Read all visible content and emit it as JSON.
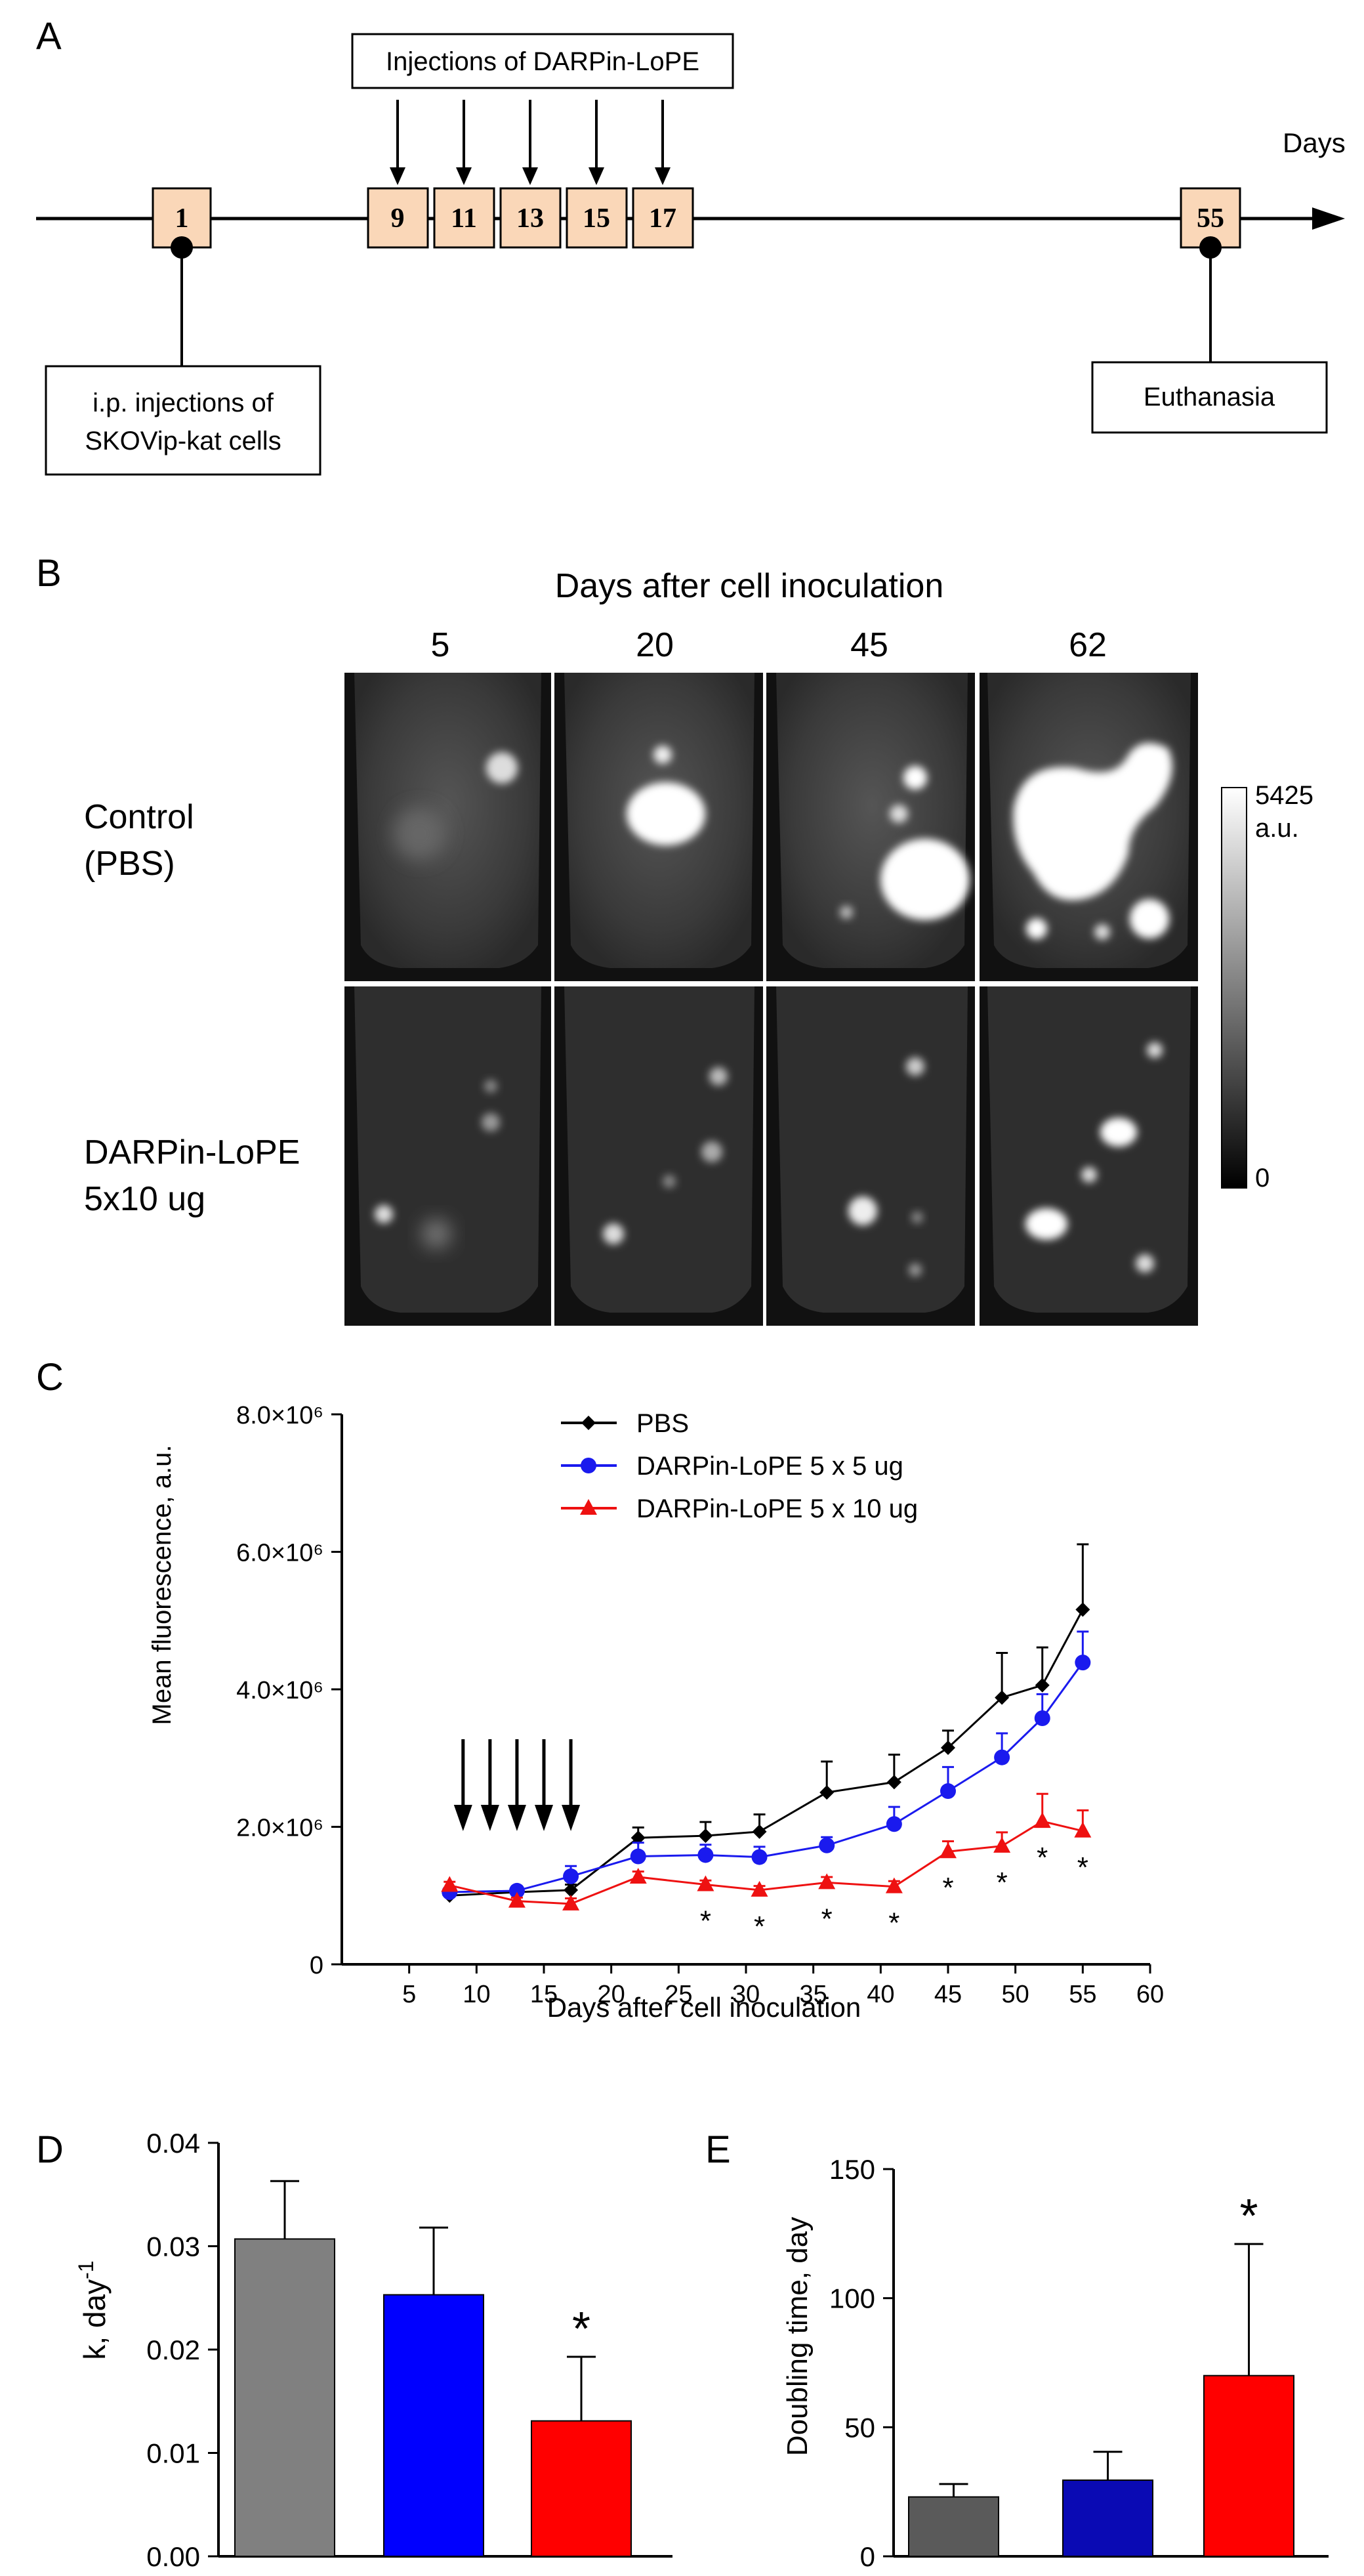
{
  "panel_letters": {
    "a": "A",
    "b": "B",
    "c": "C",
    "d": "D",
    "e": "E"
  },
  "timeline": {
    "axis_label": "Days",
    "day_boxes": [
      "1",
      "9",
      "11",
      "13",
      "15",
      "17",
      "55"
    ],
    "injection_label": "Injections of DARPin-LoPE",
    "start_label_line1": "i.p. injections of",
    "start_label_line2": "SKOVip-kat cells",
    "end_label": "Euthanasia",
    "colors": {
      "day_box_fill": "#fad7b8"
    }
  },
  "imaging": {
    "header": "Days after cell inoculation",
    "days": [
      "5",
      "20",
      "45",
      "62"
    ],
    "rows": [
      {
        "label_line1": "Control",
        "label_line2": "(PBS)"
      },
      {
        "label_line1": "DARPin-LoPE",
        "label_line2": "5x10 ug"
      }
    ],
    "colorbar": {
      "max_label": "5425",
      "unit": "a.u.",
      "min_label": "0"
    }
  },
  "chart_data": [
    {
      "type": "line",
      "panel": "C",
      "xlabel": "Days after cell inoculation",
      "ylabel": "Mean fluorescence, a.u.",
      "xlim": [
        0,
        60
      ],
      "ylim": [
        0,
        8000000
      ],
      "x_ticks": [
        "5",
        "10",
        "15",
        "20",
        "25",
        "30",
        "35",
        "40",
        "45",
        "50",
        "55",
        "60"
      ],
      "y_ticks": [
        {
          "value": 0,
          "label": "0"
        },
        {
          "value": 2000000,
          "label": "2.0×10⁶"
        },
        {
          "value": 4000000,
          "label": "4.0×10⁶"
        },
        {
          "value": 6000000,
          "label": "6.0×10⁶"
        },
        {
          "value": 8000000,
          "label": "8.0×10⁶"
        }
      ],
      "injection_days": [
        9,
        11,
        13,
        15,
        17
      ],
      "legend_position": "top-center",
      "series": [
        {
          "name": "PBS",
          "color": "#000000",
          "marker": "diamond",
          "x": [
            8,
            13,
            17,
            22,
            27,
            31,
            36,
            41,
            45,
            49,
            52,
            55
          ],
          "y": [
            1000000,
            1050000,
            1080000,
            1840000,
            1870000,
            1930000,
            2500000,
            2650000,
            3150000,
            3880000,
            4060000,
            5160000
          ],
          "err": [
            60000,
            80000,
            80000,
            150000,
            200000,
            250000,
            450000,
            400000,
            250000,
            650000,
            550000,
            950000
          ]
        },
        {
          "name": "DARPin-LoPE 5 x 5 ug",
          "color": "#1a1aee",
          "marker": "circle",
          "x": [
            8,
            13,
            17,
            22,
            27,
            31,
            36,
            41,
            45,
            49,
            52,
            55
          ],
          "y": [
            1050000,
            1070000,
            1280000,
            1570000,
            1590000,
            1560000,
            1730000,
            2040000,
            2520000,
            3010000,
            3580000,
            4390000
          ],
          "err": [
            60000,
            60000,
            150000,
            200000,
            150000,
            150000,
            120000,
            250000,
            350000,
            350000,
            350000,
            450000
          ]
        },
        {
          "name": "DARPin-LoPE 5 x 10 ug",
          "color": "#ee1111",
          "marker": "triangle",
          "x": [
            8,
            13,
            17,
            22,
            27,
            31,
            36,
            41,
            45,
            49,
            52,
            55
          ],
          "y": [
            1150000,
            920000,
            880000,
            1270000,
            1160000,
            1080000,
            1190000,
            1130000,
            1640000,
            1720000,
            2080000,
            1940000
          ],
          "err": [
            50000,
            50000,
            80000,
            80000,
            60000,
            60000,
            80000,
            80000,
            150000,
            200000,
            400000,
            300000
          ]
        }
      ],
      "significance": {
        "label": "*",
        "days": [
          27,
          31,
          36,
          41,
          45,
          49,
          52,
          55
        ]
      }
    },
    {
      "type": "bar",
      "panel": "D",
      "ylabel": "k, day",
      "ylabel_sup": "-1",
      "ylim": [
        0,
        0.04
      ],
      "y_ticks": [
        "0.00",
        "0.01",
        "0.02",
        "0.03",
        "0.04"
      ],
      "values": [
        0.0307,
        0.0253,
        0.0131
      ],
      "errors": [
        0.0056,
        0.0065,
        0.0062
      ],
      "colors": [
        "#808080",
        "#0000ff",
        "#ff0000"
      ],
      "significance": {
        "label": "*",
        "bar_index": 2
      }
    },
    {
      "type": "bar",
      "panel": "E",
      "ylabel": "Doubling time, day",
      "ylim": [
        0,
        150
      ],
      "y_ticks": [
        "0",
        "50",
        "100",
        "150"
      ],
      "values": [
        23,
        29.5,
        70
      ],
      "errors": [
        5,
        11,
        51
      ],
      "colors": [
        "#5a5a5a",
        "#0a0ab4",
        "#ff0000"
      ],
      "significance": {
        "label": "*",
        "bar_index": 2
      }
    }
  ]
}
